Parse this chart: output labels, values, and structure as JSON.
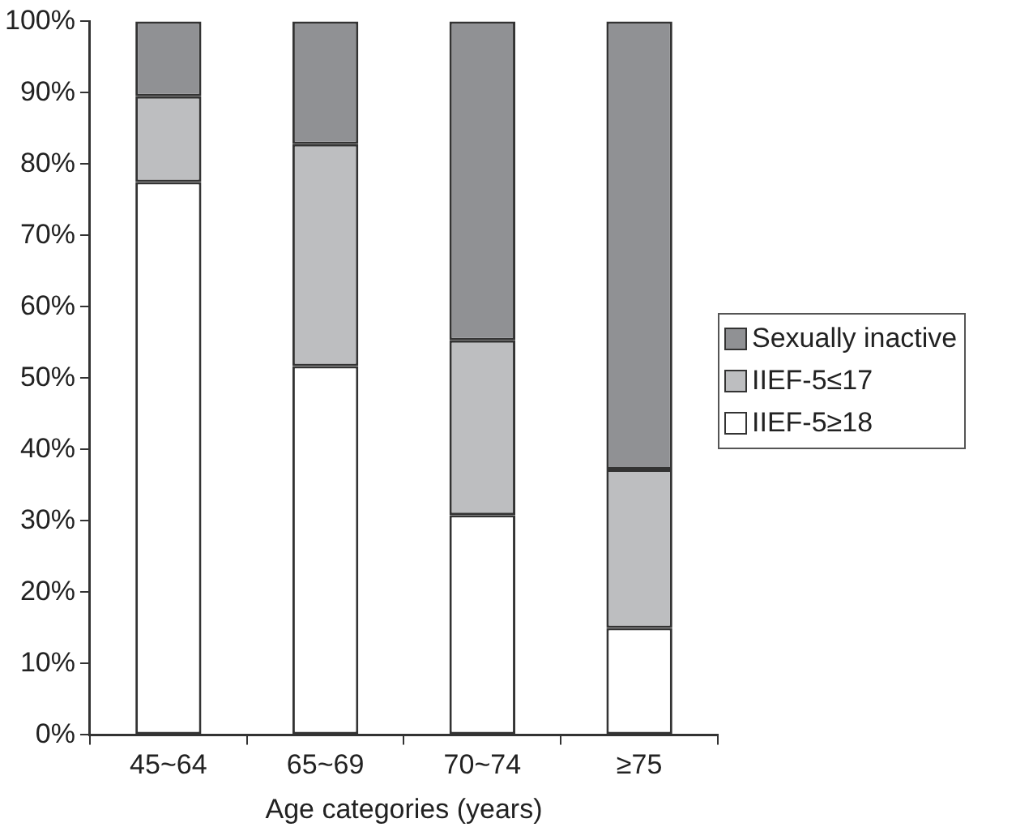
{
  "chart_data": {
    "type": "bar",
    "stacked": true,
    "xlabel": "Age categories (years)",
    "categories": [
      "45~64",
      "65~69",
      "70~74",
      "≥75"
    ],
    "series": [
      {
        "name": "IIEF-5≥18",
        "color": "#ffffff",
        "values": [
          77.5,
          51.7,
          30.8,
          15.0
        ]
      },
      {
        "name": "IIEF-5≤17",
        "color": "#bdbec0",
        "values": [
          12.0,
          31.1,
          24.5,
          22.2
        ]
      },
      {
        "name": "Sexually inactive",
        "color": "#909194",
        "values": [
          10.5,
          17.2,
          44.7,
          62.8
        ]
      }
    ],
    "ylim": [
      0,
      100
    ],
    "yticks": [
      {
        "value": 0,
        "label": "0%"
      },
      {
        "value": 10,
        "label": "10%"
      },
      {
        "value": 20,
        "label": "20%"
      },
      {
        "value": 30,
        "label": "30%"
      },
      {
        "value": 40,
        "label": "40%"
      },
      {
        "value": 50,
        "label": "50%"
      },
      {
        "value": 60,
        "label": "60%"
      },
      {
        "value": 70,
        "label": "70%"
      },
      {
        "value": 80,
        "label": "80%"
      },
      {
        "value": 90,
        "label": "90%"
      },
      {
        "value": 100,
        "label": "100%"
      }
    ],
    "grid": false,
    "legend": "right"
  }
}
